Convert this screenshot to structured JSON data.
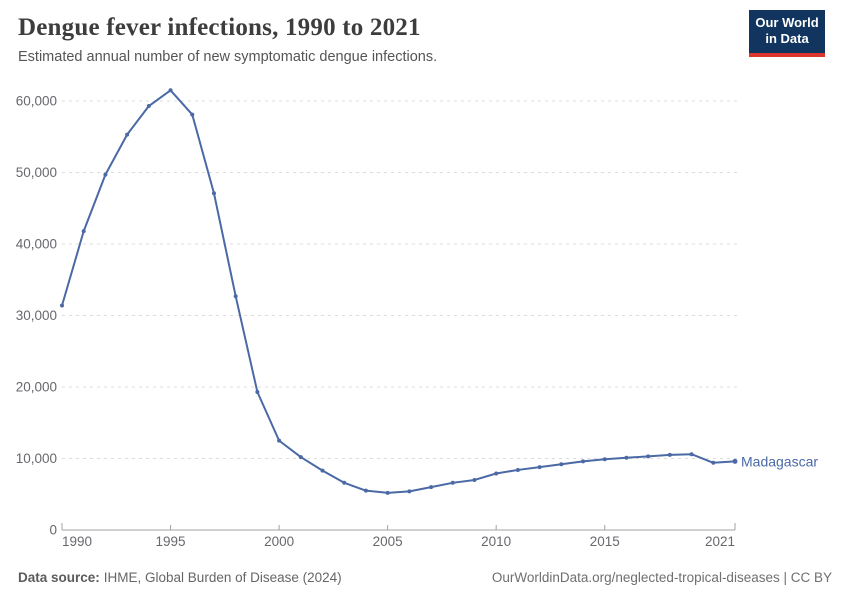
{
  "header": {
    "title": "Dengue fever infections, 1990 to 2021",
    "subtitle": "Estimated annual number of new symptomatic dengue infections."
  },
  "logo": {
    "line1": "Our World",
    "line2": "in Data",
    "background_color": "#12355f",
    "accent_color": "#dc352d"
  },
  "chart_data": {
    "type": "line",
    "title": "Dengue fever infections, 1990 to 2021",
    "subtitle": "Estimated annual number of new symptomatic dengue infections.",
    "xlabel": "",
    "ylabel": "",
    "grid": "horizontal-dashed",
    "legend_position": "end-of-line-label",
    "xlim": [
      1990,
      2021
    ],
    "ylim": [
      0,
      60000
    ],
    "x": [
      1990,
      1991,
      1992,
      1993,
      1994,
      1995,
      1996,
      1997,
      1998,
      1999,
      2000,
      2001,
      2002,
      2003,
      2004,
      2005,
      2006,
      2007,
      2008,
      2009,
      2010,
      2011,
      2012,
      2013,
      2014,
      2015,
      2016,
      2017,
      2018,
      2019,
      2020,
      2021
    ],
    "series": [
      {
        "name": "Madagascar",
        "color": "#4a69a5",
        "values": [
          31400,
          41800,
          49700,
          55300,
          59300,
          61500,
          58100,
          47100,
          32700,
          19300,
          12500,
          10200,
          8300,
          6600,
          5500,
          5200,
          5400,
          6000,
          6600,
          7000,
          7900,
          8400,
          8800,
          9200,
          9600,
          9900,
          10100,
          10300,
          10500,
          10600,
          9400,
          9600
        ]
      }
    ],
    "xticks": [
      {
        "value": 1990,
        "label": "1990"
      },
      {
        "value": 1995,
        "label": "1995"
      },
      {
        "value": 2000,
        "label": "2000"
      },
      {
        "value": 2005,
        "label": "2005"
      },
      {
        "value": 2010,
        "label": "2010"
      },
      {
        "value": 2015,
        "label": "2015"
      },
      {
        "value": 2021,
        "label": "2021"
      }
    ],
    "yticks": [
      {
        "value": 0,
        "label": "0"
      },
      {
        "value": 10000,
        "label": "10,000"
      },
      {
        "value": 20000,
        "label": "20,000"
      },
      {
        "value": 30000,
        "label": "30,000"
      },
      {
        "value": 40000,
        "label": "40,000"
      },
      {
        "value": 50000,
        "label": "50,000"
      },
      {
        "value": 60000,
        "label": "60,000"
      }
    ]
  },
  "footer": {
    "source_label": "Data source:",
    "source_value": "IHME, Global Burden of Disease (2024)",
    "license": "OurWorldinData.org/neglected-tropical-diseases | CC BY"
  }
}
